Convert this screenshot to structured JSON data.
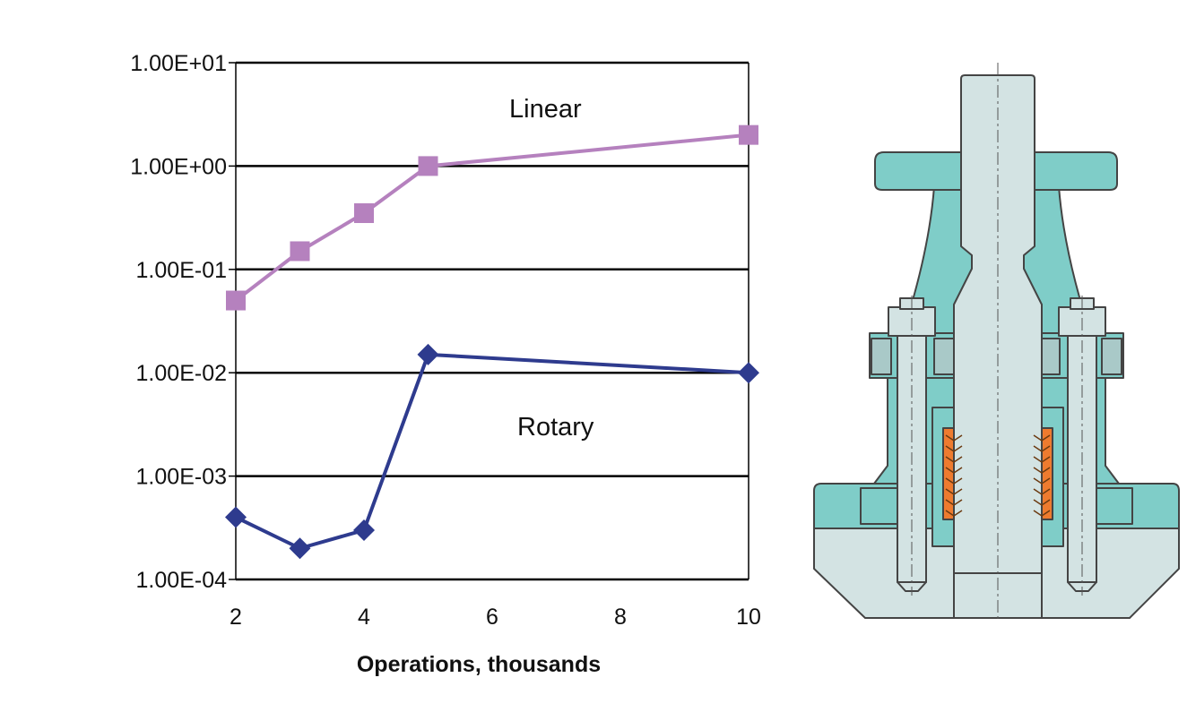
{
  "chart_data": {
    "type": "line",
    "xlabel": "Operations, thousands",
    "ylabel": "",
    "yscale": "log",
    "xlim": [
      2,
      10
    ],
    "ylim": [
      0.0001,
      10
    ],
    "x_ticks": [
      "2",
      "4",
      "6",
      "8",
      "10"
    ],
    "y_ticks": [
      "1.00E-04",
      "1.00E-03",
      "1.00E-02",
      "1.00E-01",
      "1.00E+00",
      "1.00E+01"
    ],
    "grid": "horizontal major lines",
    "legend": "none",
    "annotations": [
      "Linear",
      "Rotary"
    ],
    "series": [
      {
        "name": "Linear",
        "color": "#b581be",
        "marker": "square",
        "x": [
          2,
          3,
          4,
          5,
          10
        ],
        "values": [
          0.05,
          0.15,
          0.35,
          1.0,
          2.0
        ]
      },
      {
        "name": "Rotary",
        "color": "#2e3b8e",
        "marker": "diamond",
        "x": [
          2,
          3,
          4,
          5,
          10
        ],
        "values": [
          0.0004,
          0.0002,
          0.0003,
          0.015,
          0.01
        ]
      }
    ]
  },
  "figure": {
    "illustration": "valve-stem-packing-cross-section",
    "colors": {
      "body": "#7fcdc8",
      "stem": "#d3e3e3",
      "packing": "#ee7b2f",
      "outline": "#444444"
    }
  }
}
